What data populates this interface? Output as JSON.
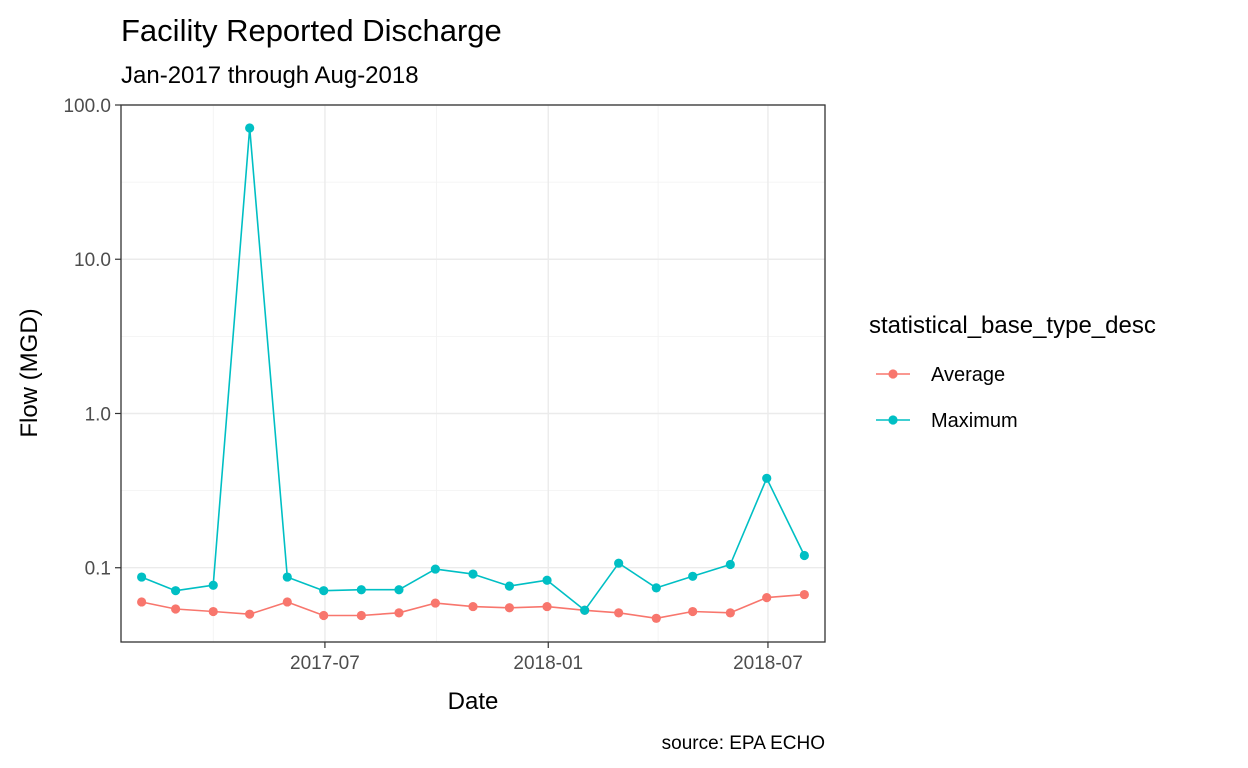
{
  "chart_data": {
    "type": "line",
    "title": "Facility Reported Discharge",
    "subtitle": "Jan-2017 through Aug-2018",
    "xlabel": "Date",
    "ylabel": "Flow (MGD)",
    "caption": "source: EPA ECHO",
    "y_scale": "log10",
    "ylim": [
      0.033,
      100
    ],
    "y_ticks": [
      {
        "value": 0.1,
        "label": "0.1"
      },
      {
        "value": 1,
        "label": "1.0"
      },
      {
        "value": 10,
        "label": "10.0"
      },
      {
        "value": 100,
        "label": "100.0"
      }
    ],
    "xlim": [
      "2017-01-14",
      "2018-08-17"
    ],
    "x_ticks": [
      {
        "value": "2017-07-01",
        "label": "2017-07"
      },
      {
        "value": "2018-01-01",
        "label": "2018-01"
      },
      {
        "value": "2018-07-01",
        "label": "2018-07"
      }
    ],
    "x": [
      "2017-01-31",
      "2017-02-28",
      "2017-03-31",
      "2017-04-30",
      "2017-05-31",
      "2017-06-30",
      "2017-07-31",
      "2017-08-31",
      "2017-09-30",
      "2017-10-31",
      "2017-11-30",
      "2017-12-31",
      "2018-01-31",
      "2018-02-28",
      "2018-03-31",
      "2018-04-30",
      "2018-05-31",
      "2018-06-30",
      "2018-07-31"
    ],
    "legend": {
      "title": "statistical_base_type_desc",
      "position": "right"
    },
    "grid": true,
    "series": [
      {
        "name": "Average",
        "color": "#F8766D",
        "values": [
          0.06,
          0.054,
          0.052,
          0.05,
          0.06,
          0.049,
          0.049,
          0.051,
          0.059,
          0.056,
          0.055,
          0.056,
          0.053,
          0.051,
          0.047,
          0.052,
          0.051,
          0.064,
          0.067
        ]
      },
      {
        "name": "Maximum",
        "color": "#00BFC4",
        "values": [
          0.087,
          0.071,
          0.077,
          71.0,
          0.087,
          0.071,
          0.072,
          0.072,
          0.098,
          0.091,
          0.076,
          0.083,
          0.053,
          0.107,
          0.074,
          0.088,
          0.105,
          0.38,
          0.12
        ]
      }
    ]
  }
}
